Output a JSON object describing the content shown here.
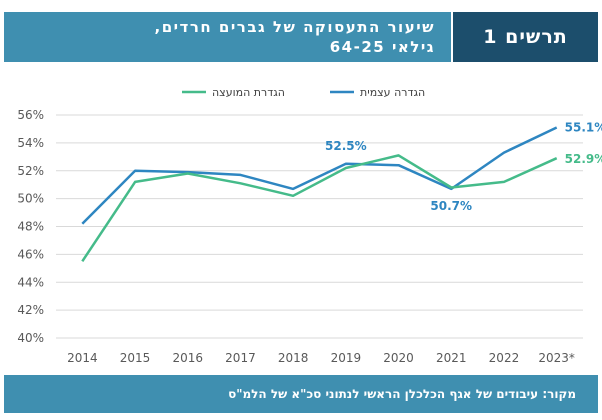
{
  "header": {
    "figure_label": "תרשים 1",
    "title_line1": "שיעור התעסוקה של גברים חרדים,",
    "title_line2": "גילאי 64-25"
  },
  "footer": {
    "source": "מקור: עיבודים של אגף הכלכלן הראשי לנתוני סכ\"א של הלמ\"ס"
  },
  "colors": {
    "series_self": "#2e86c1",
    "series_council": "#45bb8a",
    "label_blue": "#2e86c1",
    "label_green": "#45bb8a"
  },
  "chart_data": {
    "type": "line",
    "categories": [
      "2014",
      "2015",
      "2016",
      "2017",
      "2018",
      "2019",
      "2020",
      "2021",
      "2022",
      "2023*"
    ],
    "series": [
      {
        "name": "הגדרה עצמית",
        "values": [
          48.2,
          52.0,
          51.9,
          51.7,
          50.7,
          52.5,
          52.4,
          50.7,
          53.3,
          55.1
        ]
      },
      {
        "name": "הגדרת המועצה",
        "values": [
          45.5,
          51.2,
          51.8,
          51.1,
          50.2,
          52.2,
          53.1,
          50.8,
          51.2,
          52.9
        ]
      }
    ],
    "ylim": [
      40,
      56
    ],
    "yticks": [
      40,
      42,
      44,
      46,
      48,
      50,
      52,
      54,
      56
    ],
    "ytick_labels": [
      "40%",
      "42%",
      "44%",
      "46%",
      "48%",
      "50%",
      "52%",
      "54%",
      "56%"
    ],
    "legend_position": "top-center",
    "grid": "horizontal",
    "data_labels": [
      {
        "series": 0,
        "index": 5,
        "text": "52.5%"
      },
      {
        "series": 0,
        "index": 7,
        "text": "50.7%"
      },
      {
        "series": 0,
        "index": 9,
        "text": "55.1%"
      },
      {
        "series": 1,
        "index": 9,
        "text": "52.9%"
      }
    ]
  }
}
